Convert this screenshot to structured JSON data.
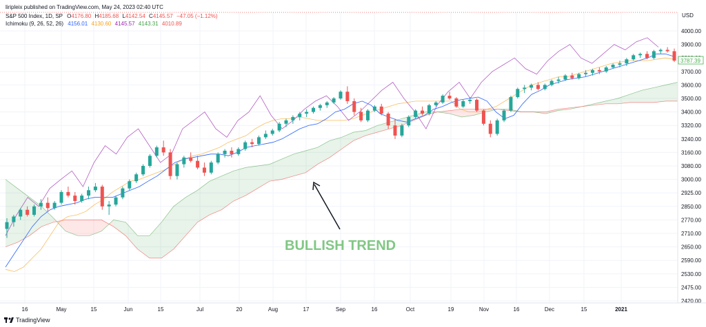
{
  "header": {
    "published": "liripleix published on TradingView.com, May 24, 2023 02:40 UTC",
    "symbol": "S&P 500 Index, 1D, SP",
    "ohlc": {
      "o_label": "O",
      "o": "4176.80",
      "h_label": "H",
      "h": "4185.68",
      "l_label": "L",
      "l": "4142.54",
      "c_label": "C",
      "c": "4145.57",
      "chg": "−47.05 (−1.12%)"
    },
    "ichimoku_label": "Ichimoku (9, 26, 52, 26)",
    "ichimoku_values": [
      "4156.01",
      "4130.60",
      "4145.57",
      "4143.31",
      "4010.89"
    ]
  },
  "footer": {
    "brand": "TradingView"
  },
  "colors": {
    "up": "#26a69a",
    "down": "#ef5350",
    "conversion": "#2962ff",
    "base": "#f7a21b",
    "lagging": "#9c27b0",
    "span_a": "#43a047",
    "span_b": "#ef5350",
    "cloud_bull": "rgba(67,160,71,0.12)",
    "cloud_bear": "rgba(244,67,54,0.12)",
    "annotation": "#81c784",
    "price_tag": "#4caf50"
  },
  "chart_data": {
    "type": "candlestick",
    "currency": "USD",
    "y_ticks": [
      "4000.00",
      "3900.00",
      "3800.00",
      "3700.00",
      "3600.00",
      "3500.00",
      "3400.00",
      "3320.00",
      "3240.00",
      "3160.00",
      "3080.00",
      "3000.00",
      "2925.00",
      "2850.00",
      "2770.00",
      "2710.00",
      "2650.00",
      "2590.00",
      "2530.00",
      "2475.00",
      "2420.00"
    ],
    "ylim": [
      2420,
      4060
    ],
    "x_ticks": [
      "16",
      "May",
      "15",
      "Jun",
      "15",
      "Jul",
      "20",
      "Aug",
      "17",
      "Sep",
      "16",
      "Oct",
      "19",
      "Nov",
      "16",
      "Dec",
      "15",
      "2021"
    ],
    "last_price": "3787.39",
    "annotation": "BULLISH TREND",
    "candles": [
      [
        2730,
        2780,
        2690,
        2760
      ],
      [
        2760,
        2800,
        2740,
        2790
      ],
      [
        2790,
        2840,
        2770,
        2830
      ],
      [
        2830,
        2850,
        2790,
        2800
      ],
      [
        2800,
        2860,
        2790,
        2850
      ],
      [
        2850,
        2890,
        2830,
        2870
      ],
      [
        2870,
        2900,
        2820,
        2840
      ],
      [
        2840,
        2880,
        2830,
        2870
      ],
      [
        2870,
        2940,
        2860,
        2930
      ],
      [
        2930,
        2960,
        2900,
        2910
      ],
      [
        2910,
        2930,
        2860,
        2880
      ],
      [
        2880,
        2920,
        2870,
        2910
      ],
      [
        2910,
        2960,
        2890,
        2940
      ],
      [
        2940,
        2980,
        2930,
        2960
      ],
      [
        2960,
        2970,
        2830,
        2850
      ],
      [
        2850,
        2880,
        2800,
        2860
      ],
      [
        2860,
        2910,
        2850,
        2900
      ],
      [
        2900,
        2960,
        2890,
        2950
      ],
      [
        2950,
        3000,
        2940,
        2990
      ],
      [
        2990,
        3040,
        2980,
        3030
      ],
      [
        3030,
        3090,
        3020,
        3080
      ],
      [
        3080,
        3150,
        3070,
        3140
      ],
      [
        3140,
        3200,
        3130,
        3190
      ],
      [
        3190,
        3230,
        3140,
        3160
      ],
      [
        3160,
        3180,
        3000,
        3020
      ],
      [
        3020,
        3100,
        3000,
        3090
      ],
      [
        3090,
        3140,
        3070,
        3130
      ],
      [
        3130,
        3160,
        3100,
        3110
      ],
      [
        3110,
        3140,
        3060,
        3070
      ],
      [
        3070,
        3100,
        3020,
        3040
      ],
      [
        3040,
        3110,
        3030,
        3100
      ],
      [
        3100,
        3160,
        3090,
        3150
      ],
      [
        3150,
        3180,
        3130,
        3170
      ],
      [
        3170,
        3190,
        3130,
        3150
      ],
      [
        3150,
        3190,
        3140,
        3180
      ],
      [
        3180,
        3230,
        3170,
        3220
      ],
      [
        3220,
        3240,
        3190,
        3210
      ],
      [
        3210,
        3260,
        3200,
        3250
      ],
      [
        3250,
        3290,
        3240,
        3270
      ],
      [
        3270,
        3300,
        3260,
        3290
      ],
      [
        3290,
        3340,
        3280,
        3330
      ],
      [
        3330,
        3360,
        3310,
        3350
      ],
      [
        3350,
        3380,
        3330,
        3370
      ],
      [
        3370,
        3400,
        3350,
        3390
      ],
      [
        3390,
        3420,
        3370,
        3400
      ],
      [
        3400,
        3440,
        3390,
        3430
      ],
      [
        3430,
        3460,
        3410,
        3450
      ],
      [
        3450,
        3480,
        3430,
        3470
      ],
      [
        3470,
        3510,
        3460,
        3500
      ],
      [
        3500,
        3560,
        3490,
        3550
      ],
      [
        3550,
        3590,
        3460,
        3480
      ],
      [
        3480,
        3500,
        3380,
        3400
      ],
      [
        3400,
        3430,
        3340,
        3350
      ],
      [
        3350,
        3420,
        3340,
        3410
      ],
      [
        3410,
        3450,
        3400,
        3440
      ],
      [
        3440,
        3460,
        3380,
        3390
      ],
      [
        3390,
        3400,
        3300,
        3320
      ],
      [
        3320,
        3360,
        3240,
        3260
      ],
      [
        3260,
        3330,
        3250,
        3320
      ],
      [
        3320,
        3380,
        3310,
        3370
      ],
      [
        3370,
        3420,
        3360,
        3410
      ],
      [
        3410,
        3440,
        3380,
        3390
      ],
      [
        3390,
        3460,
        3380,
        3450
      ],
      [
        3450,
        3480,
        3440,
        3470
      ],
      [
        3470,
        3530,
        3460,
        3520
      ],
      [
        3520,
        3550,
        3490,
        3500
      ],
      [
        3500,
        3510,
        3430,
        3440
      ],
      [
        3440,
        3490,
        3430,
        3480
      ],
      [
        3480,
        3510,
        3460,
        3490
      ],
      [
        3490,
        3500,
        3400,
        3410
      ],
      [
        3410,
        3420,
        3320,
        3330
      ],
      [
        3330,
        3350,
        3250,
        3270
      ],
      [
        3270,
        3360,
        3260,
        3350
      ],
      [
        3350,
        3420,
        3340,
        3410
      ],
      [
        3410,
        3520,
        3400,
        3510
      ],
      [
        3510,
        3580,
        3500,
        3570
      ],
      [
        3570,
        3600,
        3540,
        3580
      ],
      [
        3580,
        3610,
        3560,
        3600
      ],
      [
        3600,
        3620,
        3560,
        3570
      ],
      [
        3570,
        3610,
        3560,
        3600
      ],
      [
        3600,
        3640,
        3590,
        3630
      ],
      [
        3630,
        3660,
        3610,
        3640
      ],
      [
        3640,
        3680,
        3630,
        3670
      ],
      [
        3670,
        3690,
        3640,
        3650
      ],
      [
        3650,
        3690,
        3640,
        3680
      ],
      [
        3680,
        3710,
        3660,
        3690
      ],
      [
        3690,
        3720,
        3670,
        3710
      ],
      [
        3710,
        3730,
        3680,
        3700
      ],
      [
        3700,
        3740,
        3690,
        3730
      ],
      [
        3730,
        3760,
        3720,
        3750
      ],
      [
        3750,
        3780,
        3730,
        3760
      ],
      [
        3760,
        3800,
        3740,
        3790
      ],
      [
        3790,
        3830,
        3780,
        3820
      ],
      [
        3820,
        3840,
        3800,
        3830
      ],
      [
        3830,
        3850,
        3790,
        3800
      ],
      [
        3800,
        3860,
        3790,
        3850
      ],
      [
        3850,
        3870,
        3830,
        3860
      ],
      [
        3860,
        3880,
        3840,
        3850
      ],
      [
        3850,
        3870,
        3770,
        3780
      ]
    ],
    "conversion_line": [
      2560,
      2620,
      2680,
      2740,
      2790,
      2830,
      2850,
      2860,
      2870,
      2890,
      2900,
      2900,
      2900,
      2920,
      2940,
      2960,
      2990,
      3020,
      3060,
      3100,
      3120,
      3130,
      3140,
      3150,
      3150,
      3140,
      3160,
      3190,
      3200,
      3210,
      3220,
      3240,
      3270,
      3300,
      3320,
      3330,
      3360,
      3400,
      3420,
      3460,
      3480,
      3450,
      3390,
      3370,
      3350,
      3340,
      3360,
      3380,
      3420,
      3440,
      3470,
      3490,
      3500,
      3510,
      3480,
      3400,
      3360,
      3380,
      3460,
      3530,
      3560,
      3600,
      3620,
      3640,
      3650,
      3660,
      3680,
      3700,
      3720,
      3740,
      3760,
      3780,
      3800,
      3830,
      3830,
      3810
    ],
    "base_line": [
      2550,
      2540,
      2560,
      2600,
      2640,
      2700,
      2760,
      2790,
      2800,
      2820,
      2860,
      2890,
      2930,
      2960,
      2990,
      3000,
      3020,
      3040,
      3060,
      3090,
      3120,
      3140,
      3150,
      3170,
      3190,
      3220,
      3240,
      3260,
      3300,
      3330,
      3350,
      3360,
      3360,
      3370,
      3360,
      3350,
      3350,
      3350,
      3350,
      3360,
      3380,
      3400,
      3420,
      3440,
      3460,
      3470,
      3480,
      3480,
      3480,
      3480,
      3480,
      3420,
      3400,
      3400,
      3420,
      3440,
      3480,
      3520,
      3560,
      3600,
      3620,
      3640,
      3660,
      3660,
      3680,
      3700,
      3720,
      3740,
      3760,
      3770,
      3780,
      3780,
      3780,
      3790,
      3800,
      3790
    ],
    "lagging_line": [
      2700,
      2800,
      2900,
      2850,
      2950,
      3000,
      3050,
      2960,
      3100,
      3200,
      3150,
      3250,
      3300,
      3200,
      3100,
      3150,
      3300,
      3350,
      3400,
      3300,
      3250,
      3350,
      3400,
      3520,
      3380,
      3300,
      3350,
      3420,
      3480,
      3520,
      3440,
      3350,
      3400,
      3480,
      3560,
      3620,
      3500,
      3400,
      3300,
      3450,
      3550,
      3620,
      3500,
      3620,
      3700,
      3750,
      3800,
      3720,
      3680,
      3780,
      3850,
      3900,
      3800,
      3760,
      3830,
      3900,
      3860,
      3920,
      3950,
      3880
    ],
    "senkou_a": [
      3000,
      2950,
      2900,
      2850,
      2780,
      2720,
      2700,
      2700,
      2720,
      2770,
      2760,
      2700,
      2700,
      2760,
      2850,
      2900,
      2940,
      2990,
      3020,
      3050,
      3070,
      3080,
      3090,
      3120,
      3150,
      3170,
      3190,
      3230,
      3250,
      3280,
      3290,
      3320,
      3340,
      3360,
      3380,
      3400,
      3400,
      3390,
      3370,
      3380,
      3400,
      3420,
      3420,
      3400,
      3400,
      3390,
      3410,
      3420,
      3440,
      3460,
      3480,
      3500,
      3530,
      3560,
      3580,
      3600,
      3620
    ],
    "senkou_b": [
      2650,
      2670,
      2700,
      2740,
      2760,
      2770,
      2770,
      2770,
      2770,
      2740,
      2700,
      2640,
      2600,
      2600,
      2640,
      2700,
      2760,
      2800,
      2830,
      2880,
      2910,
      2950,
      2990,
      3000,
      3020,
      3040,
      3090,
      3130,
      3180,
      3230,
      3260,
      3280,
      3300,
      3320,
      3350,
      3380,
      3400,
      3410,
      3420,
      3420,
      3420,
      3420,
      3410,
      3400,
      3400,
      3400,
      3420,
      3430,
      3440,
      3450,
      3460,
      3460,
      3470,
      3470,
      3470,
      3480,
      3480
    ]
  }
}
